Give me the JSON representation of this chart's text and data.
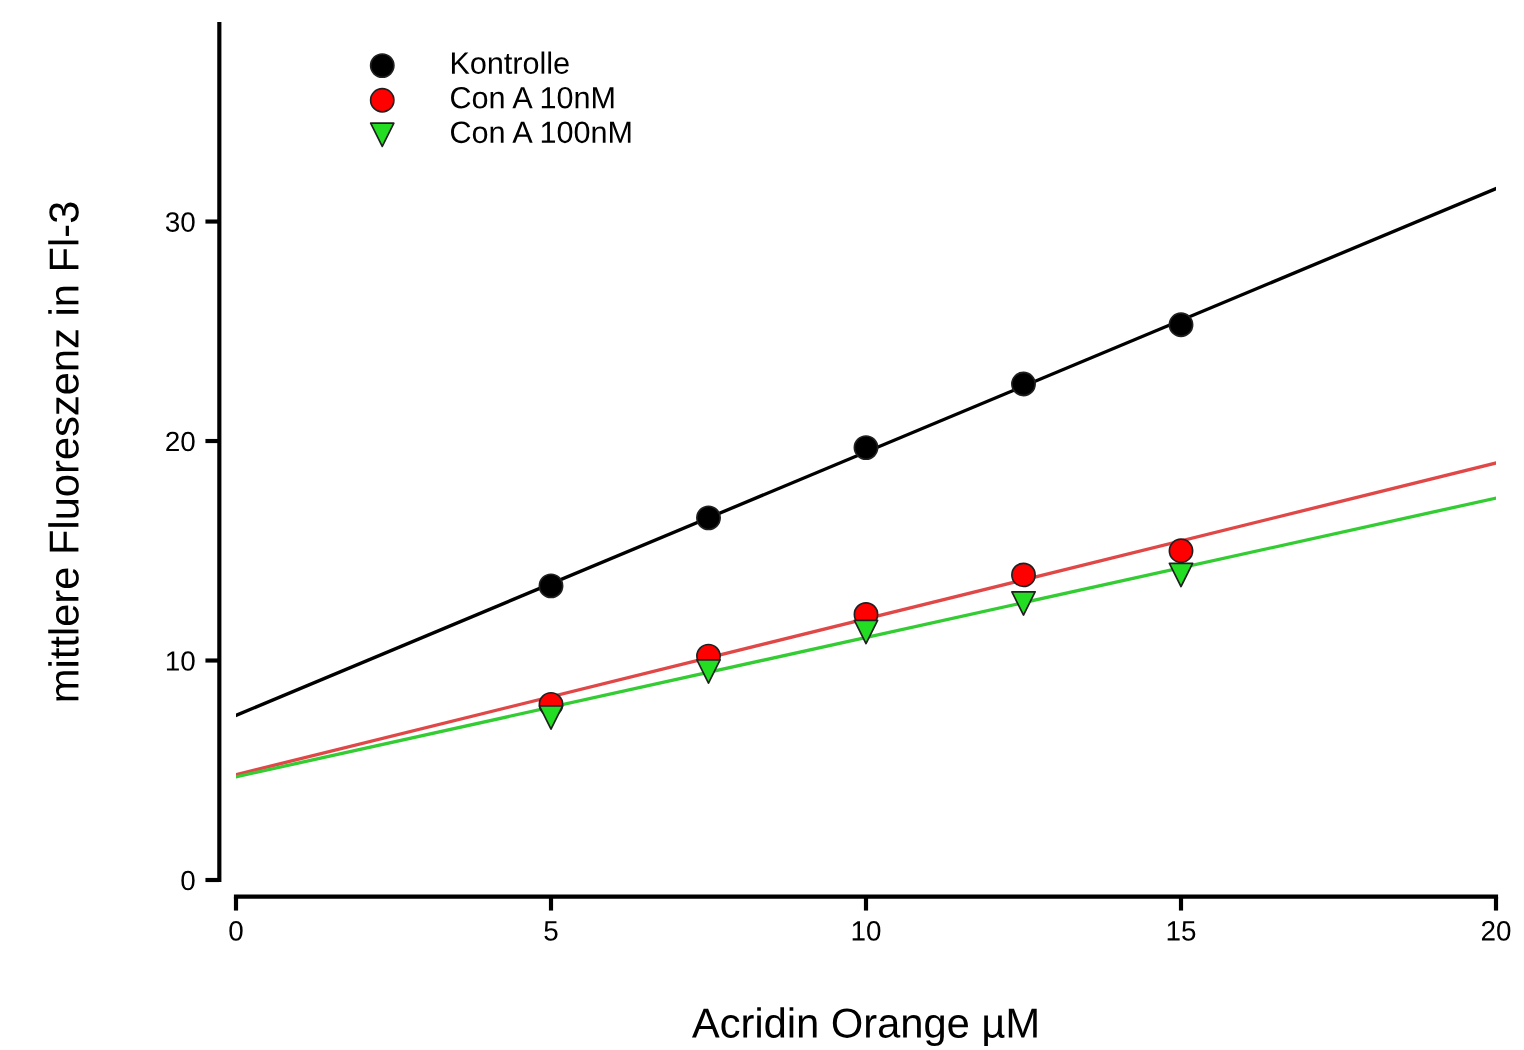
{
  "chart_data": {
    "type": "scatter",
    "xlabel": "Acridin Orange µM",
    "ylabel": "mittlere Fluoreszenz in Fl-3",
    "xlim": [
      0,
      20
    ],
    "ylim": [
      0,
      39
    ],
    "xticks": [
      0,
      5,
      10,
      15,
      20
    ],
    "yticks": [
      0,
      10,
      20,
      30
    ],
    "grid": false,
    "legend": "top left",
    "series": [
      {
        "name": "Kontrolle",
        "color": "#000000",
        "marker": "circle",
        "x": [
          5,
          7.5,
          10,
          12.5,
          15
        ],
        "values": [
          13.4,
          16.5,
          19.7,
          22.6,
          25.3
        ]
      },
      {
        "name": "Con A 10nM",
        "color": "#ff0000",
        "marker": "circle",
        "x": [
          5,
          7.5,
          10,
          12.5,
          15
        ],
        "values": [
          8.0,
          10.2,
          12.1,
          13.9,
          15.0
        ]
      },
      {
        "name": "Con A 100nM",
        "color": "#22dd22",
        "marker": "triangle",
        "x": [
          5,
          7.5,
          10,
          12.5,
          15
        ],
        "values": [
          7.4,
          9.5,
          11.3,
          12.6,
          13.9
        ]
      },
      {
        "type": "line",
        "color": "#000000",
        "x": [
          0,
          20
        ],
        "values": [
          7.5,
          31.5
        ]
      },
      {
        "type": "line",
        "color": "#e04848",
        "x": [
          0,
          20
        ],
        "values": [
          4.8,
          19.0
        ]
      },
      {
        "type": "line",
        "color": "#33cc33",
        "x": [
          0,
          20
        ],
        "values": [
          4.7,
          17.4
        ]
      }
    ]
  }
}
